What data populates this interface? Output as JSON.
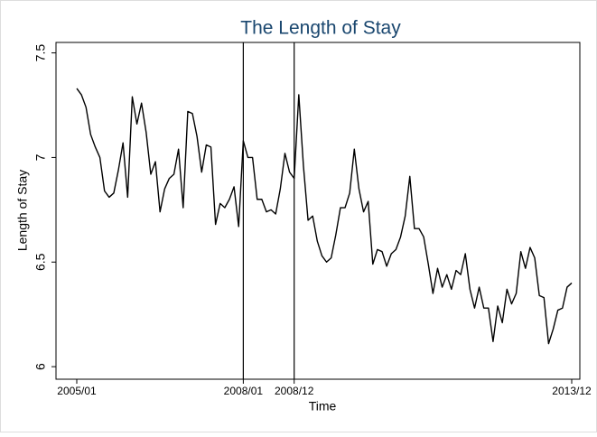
{
  "chart_data": {
    "type": "line",
    "title": "The Length of Stay",
    "x_label": "Time",
    "y_label": "Length of Stay",
    "x": [
      "2005/01",
      "2005/02",
      "2005/03",
      "2005/04",
      "2005/05",
      "2005/06",
      "2005/07",
      "2005/08",
      "2005/09",
      "2005/10",
      "2005/11",
      "2005/12",
      "2006/01",
      "2006/02",
      "2006/03",
      "2006/04",
      "2006/05",
      "2006/06",
      "2006/07",
      "2006/08",
      "2006/09",
      "2006/10",
      "2006/11",
      "2006/12",
      "2007/01",
      "2007/02",
      "2007/03",
      "2007/04",
      "2007/05",
      "2007/06",
      "2007/07",
      "2007/08",
      "2007/09",
      "2007/10",
      "2007/11",
      "2007/12",
      "2008/01",
      "2008/02",
      "2008/03",
      "2008/04",
      "2008/05",
      "2008/06",
      "2008/07",
      "2008/08",
      "2008/09",
      "2008/10",
      "2008/11",
      "2008/12",
      "2009/01",
      "2009/02",
      "2009/03",
      "2009/04",
      "2009/05",
      "2009/06",
      "2009/07",
      "2009/08",
      "2009/09",
      "2009/10",
      "2009/11",
      "2009/12",
      "2010/01",
      "2010/02",
      "2010/03",
      "2010/04",
      "2010/05",
      "2010/06",
      "2010/07",
      "2010/08",
      "2010/09",
      "2010/10",
      "2010/11",
      "2010/12",
      "2011/01",
      "2011/02",
      "2011/03",
      "2011/04",
      "2011/05",
      "2011/06",
      "2011/07",
      "2011/08",
      "2011/09",
      "2011/10",
      "2011/11",
      "2011/12",
      "2012/01",
      "2012/02",
      "2012/03",
      "2012/04",
      "2012/05",
      "2012/06",
      "2012/07",
      "2012/08",
      "2012/09",
      "2012/10",
      "2012/11",
      "2012/12",
      "2013/01",
      "2013/02",
      "2013/03",
      "2013/04",
      "2013/05",
      "2013/06",
      "2013/07",
      "2013/08",
      "2013/09",
      "2013/10",
      "2013/11",
      "2013/12"
    ],
    "values": [
      7.33,
      7.3,
      7.24,
      7.11,
      7.05,
      7.0,
      6.84,
      6.81,
      6.83,
      6.94,
      7.07,
      6.81,
      7.29,
      7.16,
      7.26,
      7.12,
      6.92,
      6.98,
      6.74,
      6.85,
      6.9,
      6.92,
      7.04,
      6.76,
      7.22,
      7.21,
      7.1,
      6.93,
      7.06,
      7.05,
      6.68,
      6.78,
      6.76,
      6.8,
      6.86,
      6.67,
      7.08,
      7.0,
      7.0,
      6.8,
      6.8,
      6.74,
      6.75,
      6.73,
      6.85,
      7.02,
      6.93,
      6.9,
      7.3,
      6.96,
      6.7,
      6.72,
      6.6,
      6.53,
      6.5,
      6.52,
      6.63,
      6.76,
      6.76,
      6.83,
      7.04,
      6.85,
      6.74,
      6.79,
      6.49,
      6.56,
      6.55,
      6.48,
      6.54,
      6.56,
      6.62,
      6.72,
      6.91,
      6.66,
      6.66,
      6.62,
      6.49,
      6.35,
      6.47,
      6.38,
      6.44,
      6.37,
      6.46,
      6.44,
      6.54,
      6.37,
      6.28,
      6.38,
      6.28,
      6.28,
      6.12,
      6.29,
      6.21,
      6.37,
      6.3,
      6.35,
      6.55,
      6.47,
      6.57,
      6.52,
      6.34,
      6.33,
      6.11,
      6.18,
      6.27,
      6.28,
      6.38,
      6.4
    ],
    "color": "#000000",
    "xticks": [
      "2005/01",
      "2008/01",
      "2008/12",
      "2013/12"
    ],
    "vlines": [
      "2008/01",
      "2008/12"
    ],
    "ylim": [
      5.94,
      7.55
    ],
    "yticks": [
      6,
      6.5,
      7,
      7.5
    ],
    "grid": false
  }
}
